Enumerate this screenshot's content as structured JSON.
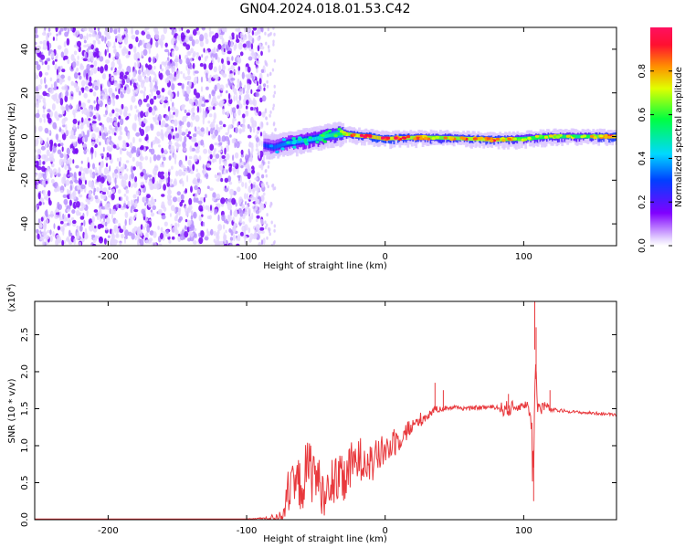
{
  "title": "GN04.2024.018.01.53.C42",
  "colorbar": {
    "label": "Normalized spectral amplitude",
    "ticks": [
      "0.0",
      "0.2",
      "0.4",
      "0.6",
      "0.8"
    ],
    "tick_values": [
      0.0,
      0.2,
      0.4,
      0.6,
      0.8
    ]
  },
  "chart_data": [
    {
      "type": "heatmap",
      "xlabel": "Height of straight line (km)",
      "ylabel": "Frequency (Hz)",
      "xlim": [
        -253,
        167
      ],
      "ylim": [
        -50,
        50
      ],
      "x_ticks": [
        -200,
        -100,
        0,
        100
      ],
      "x_tick_labels": [
        "-200",
        "-100",
        "0",
        "100"
      ],
      "y_ticks": [
        -40,
        -20,
        0,
        20,
        40
      ],
      "y_tick_labels": [
        "-40",
        "-20",
        "0",
        "20",
        "40"
      ],
      "noise_region_x": [
        -253,
        -87
      ],
      "signal_line": {
        "x": [
          -87,
          -80,
          -70,
          -60,
          -50,
          -40,
          -30,
          -20,
          -10,
          0,
          20,
          40,
          60,
          80,
          100,
          120,
          140,
          167
        ],
        "center_freq": [
          -4,
          -5,
          -3,
          -2,
          -1,
          0.5,
          1.5,
          0.5,
          0,
          -1,
          -0.5,
          -0.5,
          -1,
          -1.5,
          -1,
          0,
          0,
          0
        ],
        "peak_amplitude": [
          0.35,
          0.4,
          0.45,
          0.5,
          0.55,
          0.6,
          0.75,
          0.9,
          0.95,
          0.95,
          0.85,
          0.8,
          0.85,
          0.9,
          0.7,
          0.75,
          0.65,
          0.95
        ]
      }
    },
    {
      "type": "line",
      "xlabel": "Height of straight line (km)",
      "ylabel": "SNR (10 * v/v)",
      "exponent_label": "(x10",
      "exponent_sup": "4",
      "exponent_close": ")",
      "xlim": [
        -253,
        167
      ],
      "ylim": [
        0,
        2.95
      ],
      "x_ticks": [
        -200,
        -100,
        0,
        100
      ],
      "x_tick_labels": [
        "-200",
        "-100",
        "0",
        "100"
      ],
      "y_ticks": [
        0,
        0.5,
        1.0,
        1.5,
        2.0,
        2.5
      ],
      "y_tick_labels": [
        "0.0",
        "0.5",
        "1.0",
        "1.5",
        "2.0",
        "2.5"
      ],
      "series": [
        {
          "color": "#e8393d",
          "x": [
            -253,
            -200,
            -150,
            -100,
            -85,
            -75,
            -70,
            -65,
            -60,
            -55,
            -50,
            -45,
            -40,
            -35,
            -30,
            -25,
            -20,
            -15,
            -10,
            -5,
            0,
            5,
            10,
            15,
            20,
            25,
            30,
            35,
            40,
            50,
            60,
            70,
            80,
            85,
            90,
            95,
            100,
            103,
            105,
            107,
            108,
            110,
            112,
            115,
            120,
            130,
            140,
            150,
            167
          ],
          "y": [
            0.01,
            0.01,
            0.01,
            0.01,
            0.02,
            0.05,
            0.3,
            0.45,
            0.5,
            0.7,
            0.6,
            0.35,
            0.3,
            0.55,
            0.5,
            0.7,
            0.8,
            0.85,
            0.75,
            0.85,
            0.95,
            1.0,
            1.1,
            1.2,
            1.25,
            1.35,
            1.4,
            1.48,
            1.5,
            1.52,
            1.5,
            1.52,
            1.52,
            1.5,
            1.5,
            1.52,
            1.55,
            1.55,
            1.4,
            0.6,
            2.3,
            1.5,
            1.5,
            1.55,
            1.48,
            1.47,
            1.45,
            1.44,
            1.42
          ],
          "noise_amplitude": [
            0,
            0,
            0,
            0,
            0.02,
            0.08,
            0.25,
            0.35,
            0.4,
            0.45,
            0.4,
            0.3,
            0.25,
            0.35,
            0.35,
            0.35,
            0.3,
            0.3,
            0.28,
            0.25,
            0.22,
            0.2,
            0.18,
            0.15,
            0.12,
            0.1,
            0.08,
            0.05,
            0.04,
            0.03,
            0.03,
            0.03,
            0.03,
            0.1,
            0.12,
            0.06,
            0.05,
            0.06,
            0.2,
            0.5,
            0.6,
            0.15,
            0.1,
            0.08,
            0.03,
            0.02,
            0.02,
            0.02,
            0.02
          ]
        }
      ]
    }
  ]
}
